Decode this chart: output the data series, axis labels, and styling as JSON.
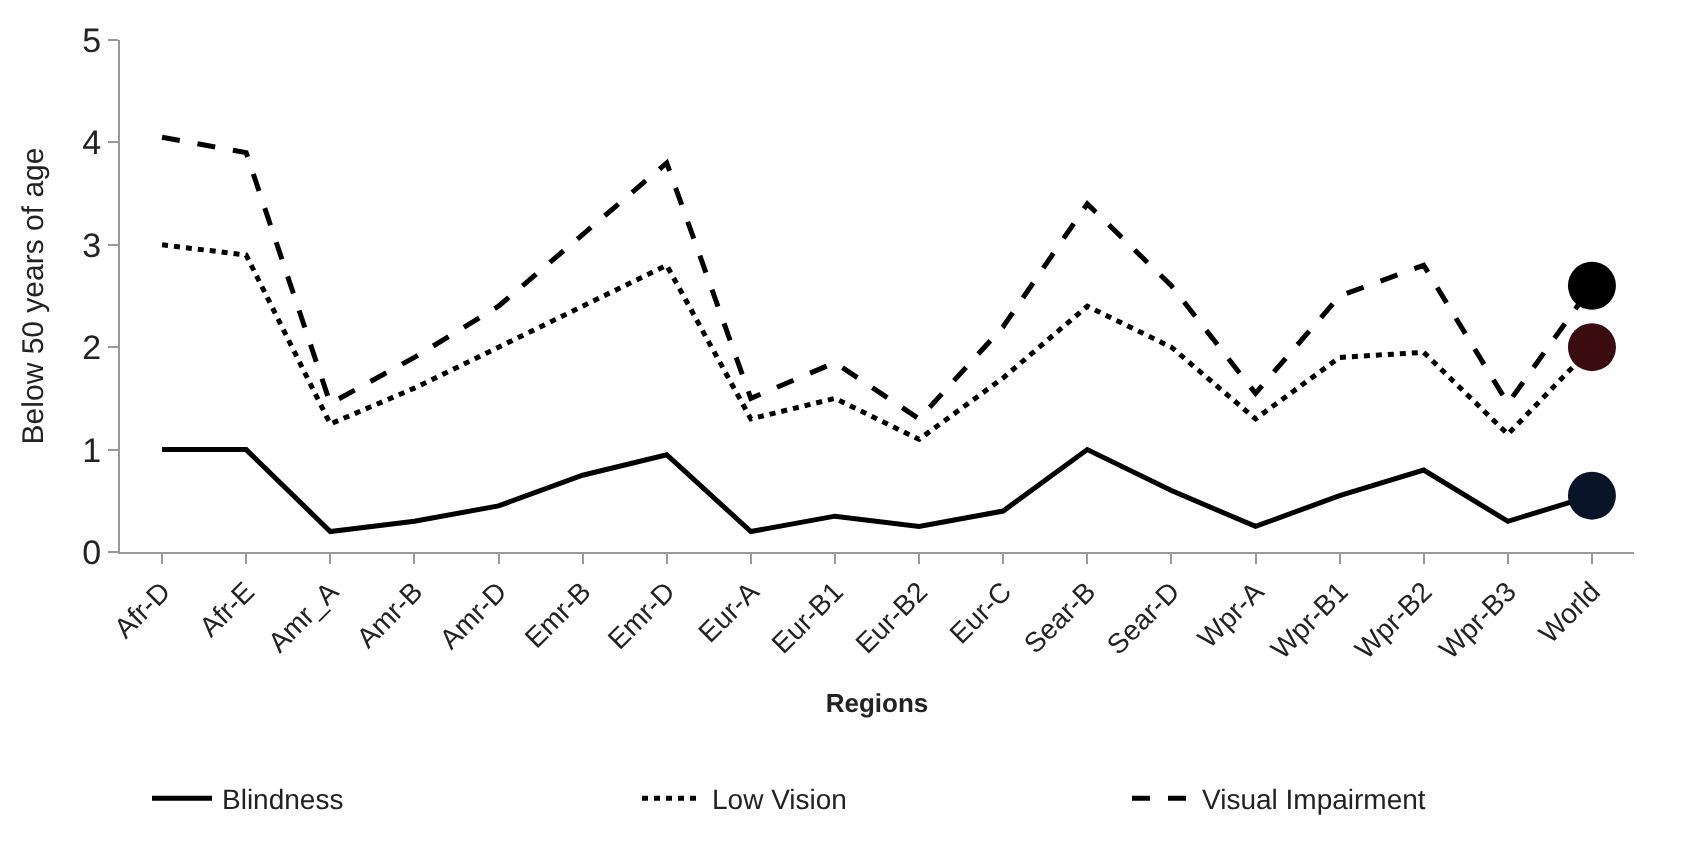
{
  "chart_data": {
    "type": "line",
    "xlabel": "Regions",
    "ylabel": "Below 50 years of age",
    "categories": [
      "Afr-D",
      "Afr-E",
      "Amr_A",
      "Amr-B",
      "Amr-D",
      "Emr-B",
      "Emr-D",
      "Eur-A",
      "Eur-B1",
      "Eur-B2",
      "Eur-C",
      "Sear-B",
      "Sear-D",
      "Wpr-A",
      "Wpr-B1",
      "Wpr-B2",
      "Wpr-B3",
      "World"
    ],
    "series": [
      {
        "name": "Blindness",
        "color": "#000000",
        "line_style": "solid",
        "values": [
          1.0,
          1.0,
          0.2,
          0.3,
          0.45,
          0.75,
          0.95,
          0.2,
          0.35,
          0.25,
          0.4,
          1.0,
          0.6,
          0.25,
          0.55,
          0.8,
          0.3,
          0.55
        ]
      },
      {
        "name": "Low Vision",
        "color": "#000000",
        "line_style": "dotted",
        "values": [
          3.0,
          2.9,
          1.25,
          1.6,
          2.0,
          2.4,
          2.8,
          1.3,
          1.5,
          1.1,
          1.7,
          2.4,
          2.0,
          1.3,
          1.9,
          1.95,
          1.15,
          2.0
        ]
      },
      {
        "name": "Visual Impairment",
        "color": "#000000",
        "line_style": "dashed",
        "values": [
          4.05,
          3.9,
          1.45,
          1.9,
          2.4,
          3.1,
          3.8,
          1.5,
          1.85,
          1.3,
          2.2,
          3.4,
          2.6,
          1.55,
          2.5,
          2.8,
          1.45,
          2.6
        ]
      },
      {
        "type": "scatter",
        "color": "#0a1428",
        "marker": "circle",
        "x": [
          "World"
        ],
        "values": [
          0.55
        ]
      },
      {
        "type": "scatter",
        "color": "#3a0c10",
        "marker": "circle",
        "x": [
          "World"
        ],
        "values": [
          2.0
        ]
      },
      {
        "type": "scatter",
        "color": "#000000",
        "marker": "circle",
        "x": [
          "World"
        ],
        "values": [
          2.6
        ]
      }
    ],
    "ylim": [
      0,
      5
    ],
    "yticks": [
      0,
      1,
      2,
      3,
      4,
      5
    ],
    "grid": false,
    "legend": "bottom",
    "marker": "none"
  }
}
